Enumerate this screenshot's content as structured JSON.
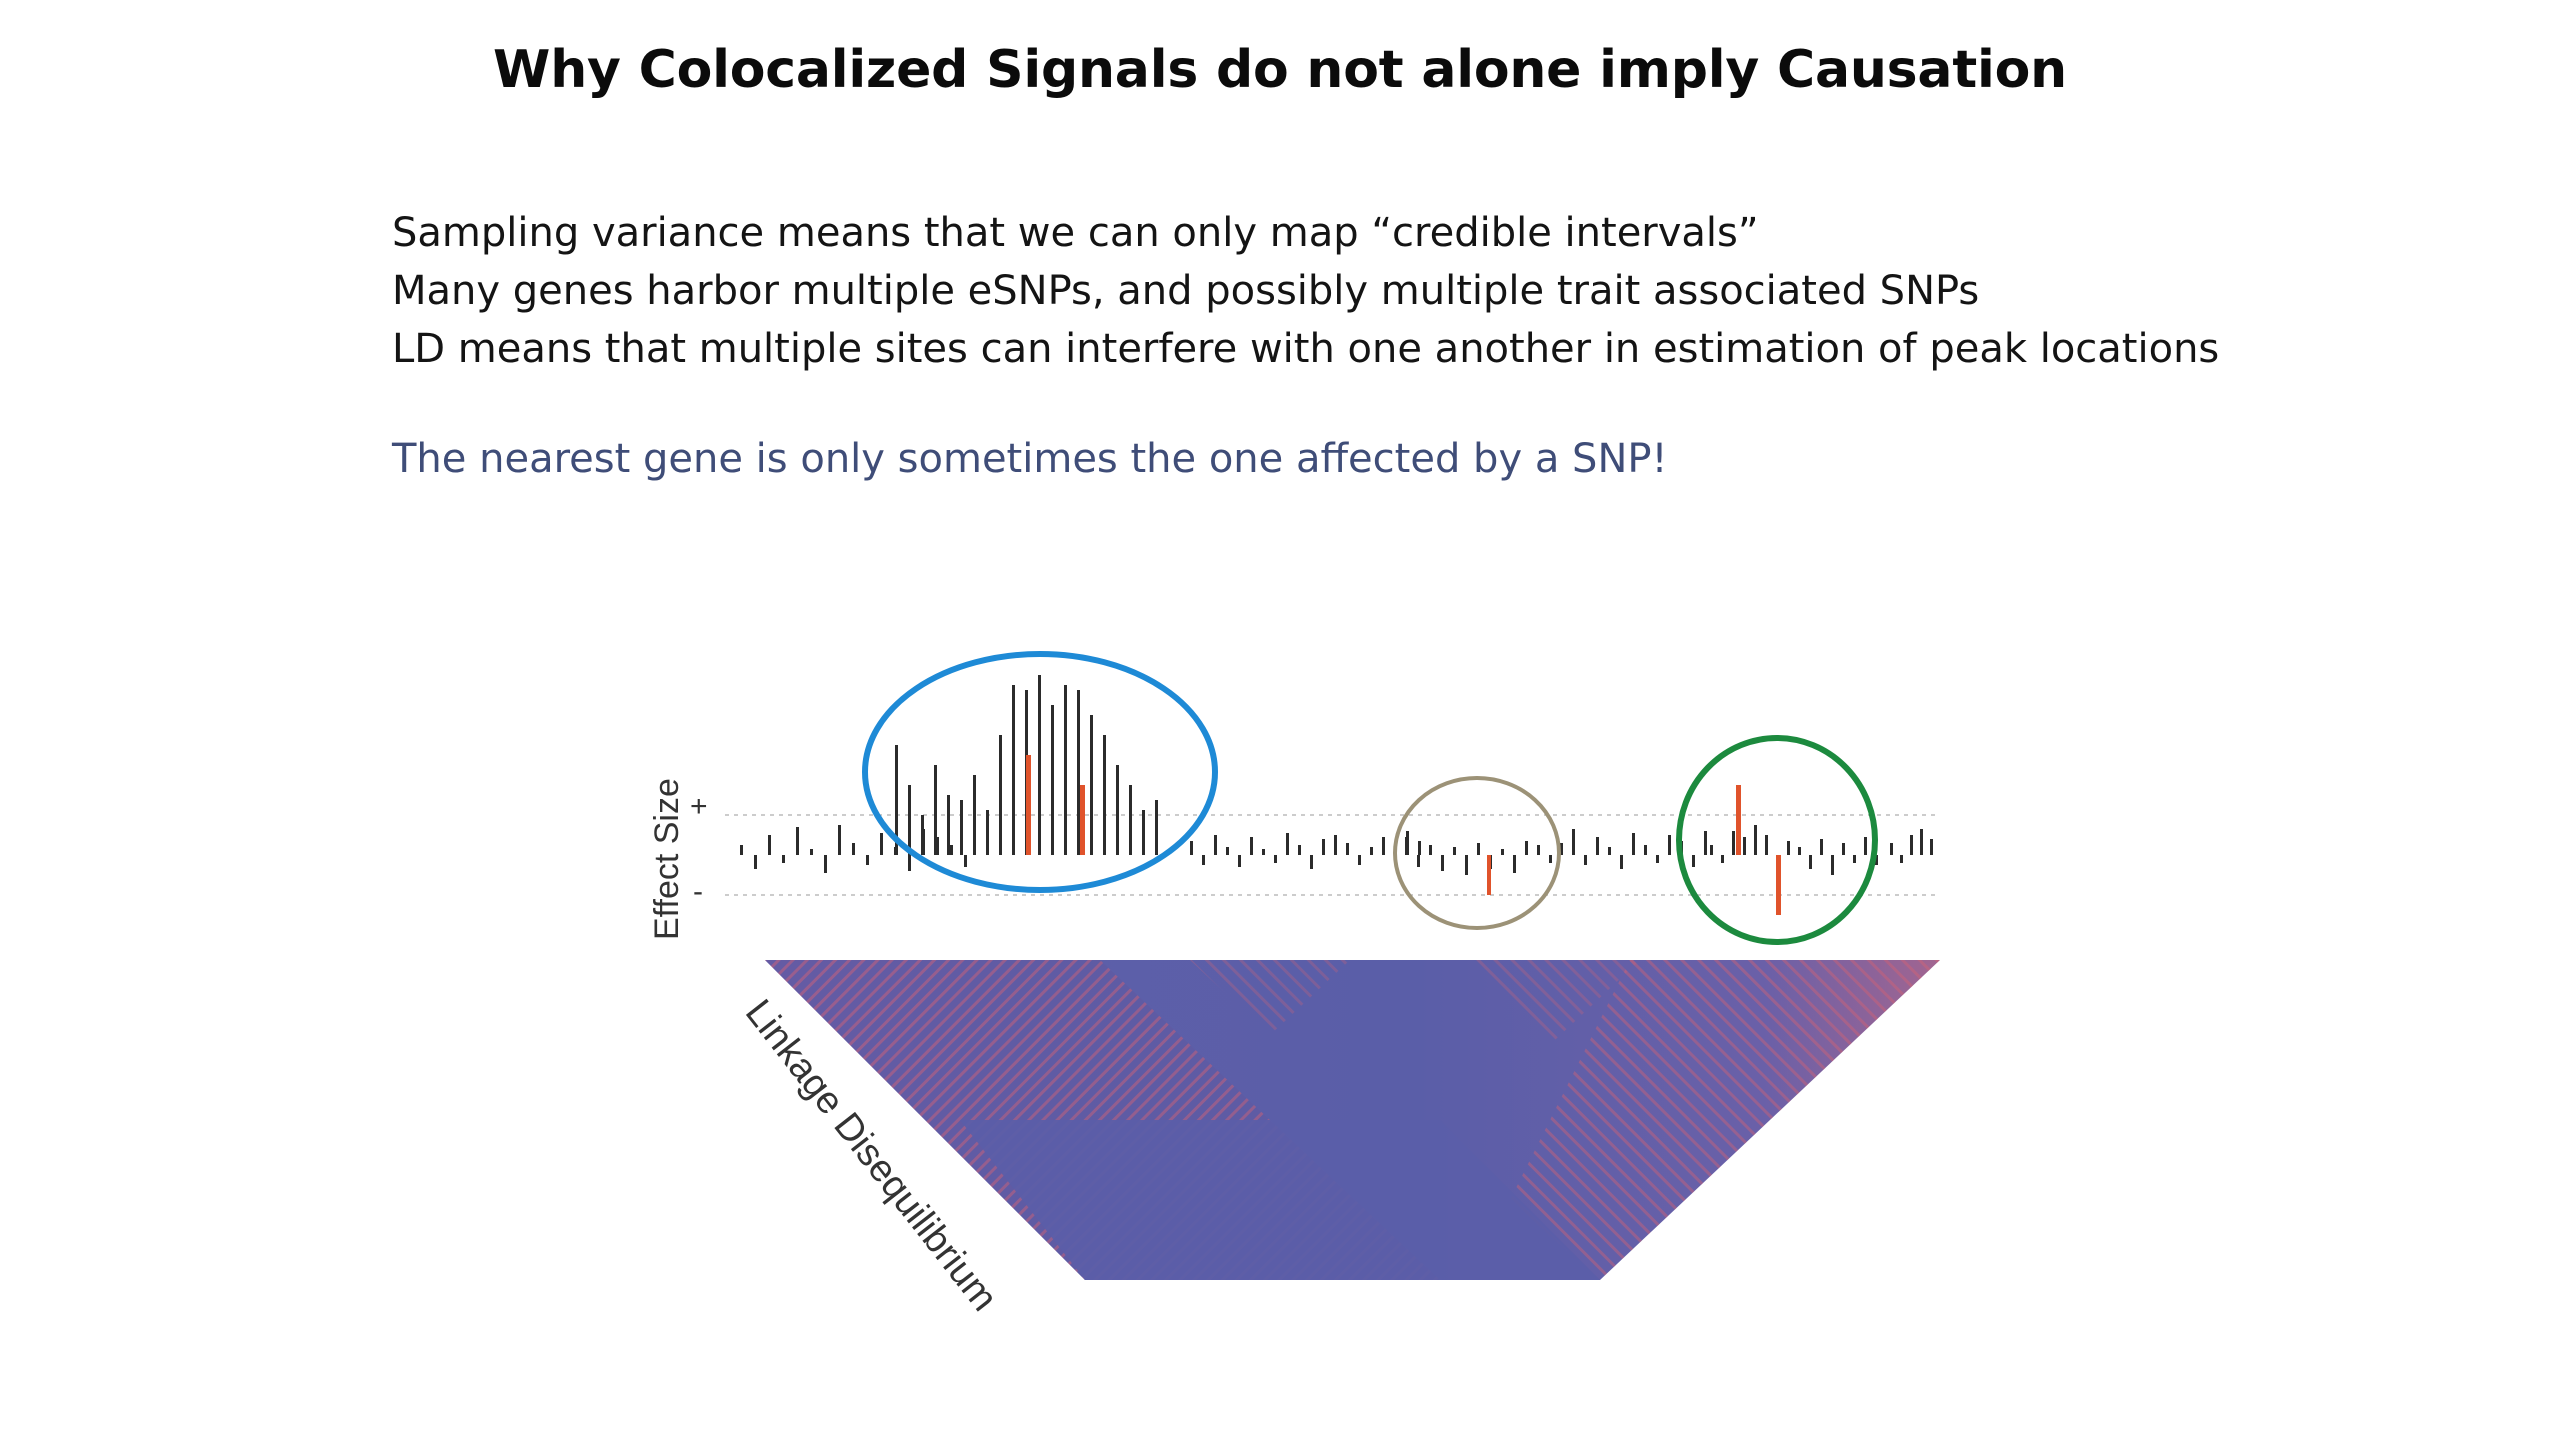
{
  "slide": {
    "title": "Why Colocalized Signals do not alone imply Causation",
    "bullets": [
      "Sampling variance means that we can only map “credible intervals”",
      "Many genes harbor multiple eSNPs, and possibly multiple trait associated SNPs",
      "LD means that multiple sites can interfere with one another in estimation of peak locations"
    ],
    "highlight": "The nearest gene is only sometimes the one affected by a SNP!",
    "highlight_color": "#3f4d78"
  },
  "figure": {
    "effect_label": "Effect Size",
    "plus_label": "+",
    "minus_label": "-",
    "ld_label": "Linkage Disequilibrium",
    "colors": {
      "bar": "#2b2b2b",
      "highlight_bar": "#e0532b",
      "circle_blue": "#1e8ad6",
      "circle_tan": "#9c9277",
      "circle_green": "#1c8a3e",
      "ld_base": "#5a5ea8",
      "ld_hot": "#e0636b"
    }
  }
}
